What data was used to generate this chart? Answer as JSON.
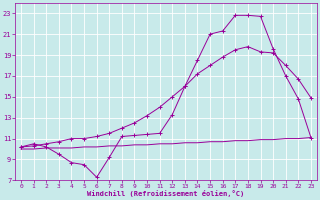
{
  "xlabel": "Windchill (Refroidissement éolien,°C)",
  "bg_color": "#c8eaea",
  "grid_color": "#b0d8d8",
  "line_color": "#990099",
  "line1_x": [
    0,
    1,
    2,
    3,
    4,
    5,
    6,
    7,
    8,
    9,
    10,
    11,
    12,
    13,
    14,
    15,
    16,
    17,
    18,
    19,
    20,
    21,
    22,
    23
  ],
  "line1_y": [
    10.2,
    10.5,
    10.2,
    9.5,
    8.7,
    8.5,
    7.3,
    9.2,
    11.2,
    11.3,
    11.4,
    11.5,
    13.3,
    16.0,
    18.5,
    21.0,
    21.3,
    22.8,
    22.8,
    22.7,
    19.6,
    17.0,
    14.8,
    11.1
  ],
  "line2_x": [
    0,
    1,
    2,
    3,
    4,
    5,
    6,
    7,
    8,
    9,
    10,
    11,
    12,
    13,
    14,
    15,
    16,
    17,
    18,
    19,
    20,
    21,
    22,
    23
  ],
  "line2_y": [
    10.2,
    10.3,
    10.5,
    10.7,
    11.0,
    11.0,
    11.2,
    11.5,
    12.0,
    12.5,
    13.2,
    14.0,
    15.0,
    16.0,
    17.2,
    18.0,
    18.8,
    19.5,
    19.8,
    19.3,
    19.2,
    18.0,
    16.7,
    14.9
  ],
  "line3_x": [
    0,
    1,
    2,
    3,
    4,
    5,
    6,
    7,
    8,
    9,
    10,
    11,
    12,
    13,
    14,
    15,
    16,
    17,
    18,
    19,
    20,
    21,
    22,
    23
  ],
  "line3_y": [
    10.0,
    10.0,
    10.1,
    10.1,
    10.1,
    10.2,
    10.2,
    10.3,
    10.3,
    10.4,
    10.4,
    10.5,
    10.5,
    10.6,
    10.6,
    10.7,
    10.7,
    10.8,
    10.8,
    10.9,
    10.9,
    11.0,
    11.0,
    11.1
  ],
  "xlim": [
    -0.5,
    23.5
  ],
  "ylim": [
    7,
    24
  ],
  "yticks": [
    7,
    9,
    11,
    13,
    15,
    17,
    19,
    21,
    23
  ],
  "xticks": [
    0,
    1,
    2,
    3,
    4,
    5,
    6,
    7,
    8,
    9,
    10,
    11,
    12,
    13,
    14,
    15,
    16,
    17,
    18,
    19,
    20,
    21,
    22,
    23
  ]
}
